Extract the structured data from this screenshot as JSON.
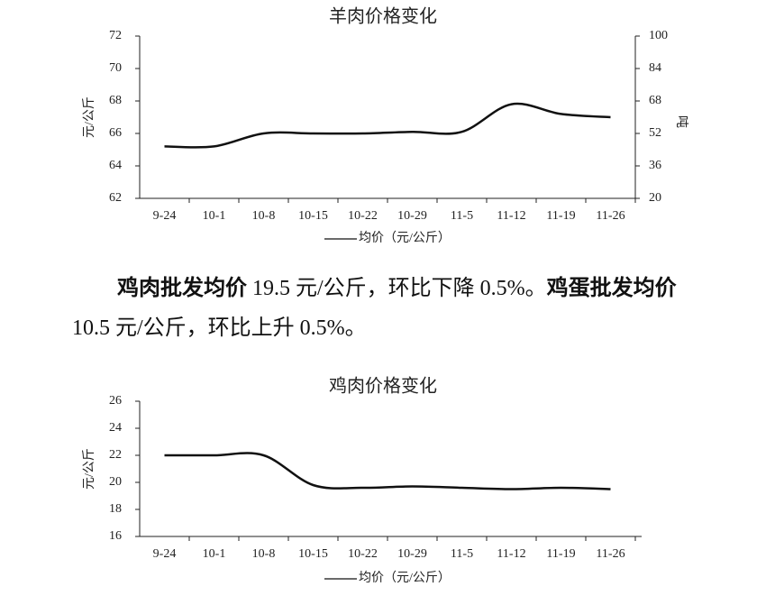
{
  "chart_data": [
    {
      "type": "line",
      "title": "羊肉价格变化",
      "ylabel": "元/公斤",
      "y2label": "吨",
      "categories": [
        "9-24",
        "10-1",
        "10-8",
        "10-15",
        "10-22",
        "10-29",
        "11-5",
        "11-12",
        "11-19",
        "11-26"
      ],
      "series": [
        {
          "name": "均价（元/公斤）",
          "color": "#111111",
          "values": [
            65.2,
            65.2,
            66.0,
            66.0,
            66.0,
            66.1,
            66.1,
            67.8,
            67.2,
            67.0
          ]
        }
      ],
      "ylim": [
        62,
        72
      ],
      "yticks": [
        62,
        64,
        66,
        68,
        70,
        72
      ],
      "y2lim": [
        20,
        100
      ],
      "y2ticks": [
        20,
        36,
        52,
        68,
        84,
        100
      ]
    },
    {
      "type": "line",
      "title": "鸡肉价格变化",
      "ylabel": "元/公斤",
      "categories": [
        "9-24",
        "10-1",
        "10-8",
        "10-15",
        "10-22",
        "10-29",
        "11-5",
        "11-12",
        "11-19",
        "11-26"
      ],
      "series": [
        {
          "name": "均价（元/公斤）",
          "color": "#111111",
          "values": [
            22.0,
            22.0,
            22.0,
            19.8,
            19.6,
            19.7,
            19.6,
            19.5,
            19.6,
            19.5
          ]
        }
      ],
      "ylim": [
        16,
        26
      ],
      "yticks": [
        16,
        18,
        20,
        22,
        24,
        26
      ]
    }
  ],
  "paragraph": [
    {
      "text": "鸡肉批发均价",
      "bold": true
    },
    {
      "text": " 19.5 元/公斤，环比下降 0.5%。",
      "bold": false
    },
    {
      "text": "鸡蛋批发均价",
      "bold": true
    },
    {
      "text": " 10.5 元/公斤，环比上升 0.5%。",
      "bold": false
    }
  ]
}
